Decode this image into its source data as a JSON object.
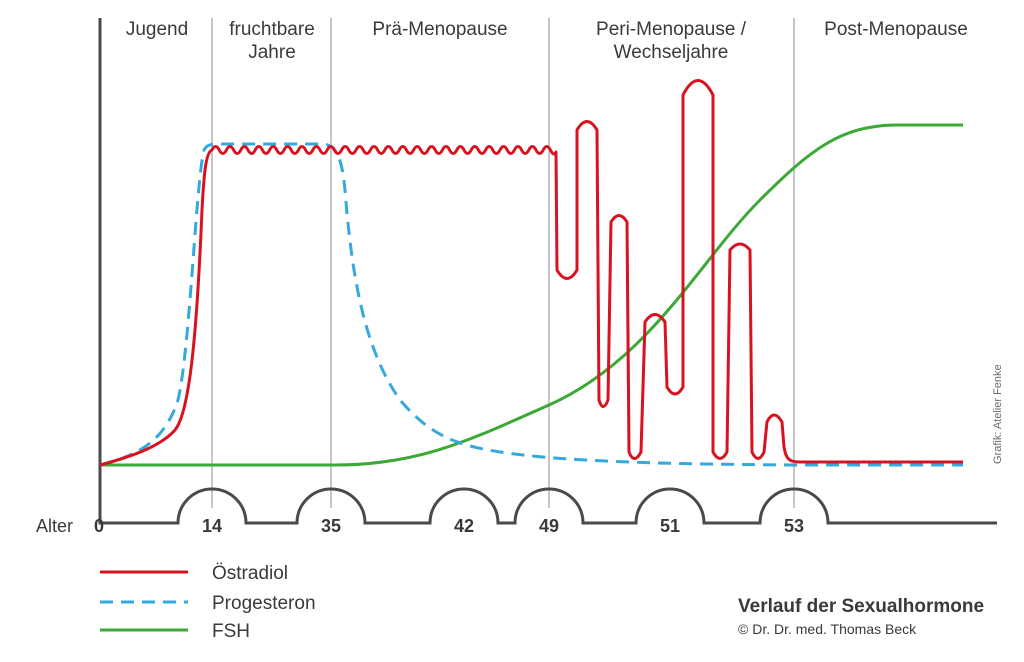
{
  "chart_data": {
    "type": "line",
    "title": "Verlauf der Sexualhormone",
    "credit": "© Dr. Dr. med. Thomas Beck",
    "side_credit": "Grafik: Atelier Fenke",
    "xlabel": "Alter",
    "x_ticks": [
      "0",
      "14",
      "35",
      "42",
      "49",
      "51",
      "53"
    ],
    "phases": [
      {
        "lines": [
          "Jugend"
        ]
      },
      {
        "lines": [
          "fruchtbare",
          "Jahre"
        ]
      },
      {
        "lines": [
          "Prä-Menopause"
        ]
      },
      {
        "lines": [
          "Peri-Menopause /",
          "Wechseljahre"
        ]
      },
      {
        "lines": [
          "Post-Menopause"
        ]
      }
    ],
    "series": [
      {
        "name": "Östradiol",
        "color": "#d9121f",
        "style": "solid"
      },
      {
        "name": "Progesteron",
        "color": "#35a8dc",
        "style": "dashed"
      },
      {
        "name": "FSH",
        "color": "#3aa935",
        "style": "solid"
      }
    ],
    "grid": "vertical phase dividers"
  }
}
